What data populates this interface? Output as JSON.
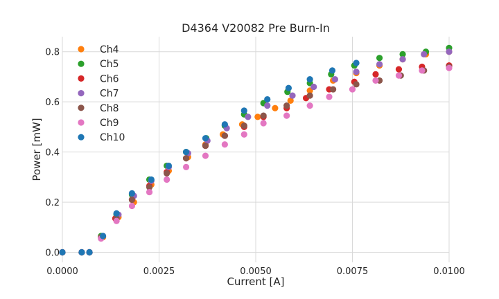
{
  "chart_data": {
    "type": "scatter",
    "title": "D4364 V20082 Pre Burn-In",
    "xlabel": "Current [A]",
    "ylabel": "Power [mW]",
    "xlim": [
      0.0,
      0.01
    ],
    "ylim": [
      -0.04,
      0.86
    ],
    "xticks": [
      0.0,
      0.0025,
      0.005,
      0.0075,
      0.01
    ],
    "xtick_labels": [
      "0.0000",
      "0.0025",
      "0.0050",
      "0.0075",
      "0.0100"
    ],
    "yticks": [
      0.0,
      0.2,
      0.4,
      0.6,
      0.8
    ],
    "ytick_labels": [
      "0.0",
      "0.2",
      "0.4",
      "0.6",
      "0.8"
    ],
    "grid": true,
    "legend_position": "top-left",
    "series": [
      {
        "name": "Ch4",
        "color": "#ff7f0e",
        "x": [
          0,
          0.0005,
          0.0007,
          0.00105,
          0.00145,
          0.00185,
          0.0023,
          0.00275,
          0.00325,
          0.0037,
          0.00415,
          0.00465,
          0.00505,
          0.0055,
          0.0059,
          0.0064,
          0.007,
          0.0076,
          0.0082,
          0.0088,
          0.0094,
          0.01
        ],
        "y": [
          0,
          0,
          0,
          0.06,
          0.14,
          0.2,
          0.27,
          0.325,
          0.38,
          0.43,
          0.47,
          0.51,
          0.54,
          0.575,
          0.605,
          0.645,
          0.685,
          0.715,
          0.745,
          0.77,
          0.79,
          0.8
        ]
      },
      {
        "name": "Ch5",
        "color": "#2ca02c",
        "x": [
          0,
          0.0005,
          0.0007,
          0.001,
          0.0014,
          0.0018,
          0.00225,
          0.0027,
          0.0032,
          0.00372,
          0.0042,
          0.0047,
          0.0052,
          0.00582,
          0.0064,
          0.00695,
          0.00755,
          0.0082,
          0.0088,
          0.0094,
          0.01
        ],
        "y": [
          0,
          0,
          0,
          0.065,
          0.15,
          0.23,
          0.29,
          0.345,
          0.4,
          0.455,
          0.505,
          0.55,
          0.595,
          0.64,
          0.675,
          0.71,
          0.745,
          0.775,
          0.79,
          0.8,
          0.815
        ]
      },
      {
        "name": "Ch6",
        "color": "#d62728",
        "x": [
          0,
          0.0005,
          0.0007,
          0.001,
          0.00137,
          0.0018,
          0.00225,
          0.0027,
          0.0032,
          0.0037,
          0.0042,
          0.0047,
          0.0052,
          0.0058,
          0.0063,
          0.0069,
          0.00755,
          0.0081,
          0.0087,
          0.0093,
          0.01
        ],
        "y": [
          0,
          0,
          0,
          0.06,
          0.135,
          0.21,
          0.265,
          0.32,
          0.375,
          0.425,
          0.465,
          0.5,
          0.54,
          0.575,
          0.615,
          0.65,
          0.68,
          0.71,
          0.73,
          0.74,
          0.745
        ]
      },
      {
        "name": "Ch7",
        "color": "#9467bd",
        "x": [
          0,
          0.0005,
          0.0007,
          0.00105,
          0.00145,
          0.00185,
          0.0023,
          0.00275,
          0.00325,
          0.00375,
          0.00425,
          0.0048,
          0.0053,
          0.00595,
          0.0065,
          0.00705,
          0.0076,
          0.0082,
          0.0088,
          0.00935,
          0.01
        ],
        "y": [
          0,
          0,
          0,
          0.065,
          0.15,
          0.225,
          0.285,
          0.34,
          0.395,
          0.445,
          0.495,
          0.54,
          0.585,
          0.625,
          0.66,
          0.69,
          0.72,
          0.75,
          0.77,
          0.79,
          0.8
        ]
      },
      {
        "name": "Ch8",
        "color": "#8c564b",
        "x": [
          0,
          0.0005,
          0.0007,
          0.001,
          0.0014,
          0.0018,
          0.00225,
          0.0027,
          0.0032,
          0.0037,
          0.0042,
          0.0047,
          0.0052,
          0.0058,
          0.0064,
          0.007,
          0.0076,
          0.0082,
          0.00875,
          0.00935,
          0.01
        ],
        "y": [
          0,
          0,
          0,
          0.06,
          0.135,
          0.21,
          0.26,
          0.315,
          0.375,
          0.425,
          0.465,
          0.505,
          0.545,
          0.585,
          0.625,
          0.65,
          0.67,
          0.685,
          0.705,
          0.725,
          0.74
        ]
      },
      {
        "name": "Ch9",
        "color": "#e377c2",
        "x": [
          0,
          0.0005,
          0.0007,
          0.001,
          0.0014,
          0.0018,
          0.00225,
          0.0027,
          0.0032,
          0.0037,
          0.0042,
          0.0047,
          0.0052,
          0.0058,
          0.0064,
          0.0069,
          0.0075,
          0.0081,
          0.0087,
          0.0093,
          0.01
        ],
        "y": [
          0,
          0,
          0,
          0.055,
          0.125,
          0.185,
          0.24,
          0.29,
          0.34,
          0.385,
          0.43,
          0.47,
          0.515,
          0.545,
          0.585,
          0.62,
          0.65,
          0.685,
          0.705,
          0.725,
          0.735
        ]
      },
      {
        "name": "Ch10",
        "color": "#1f77b4",
        "x": [
          0,
          0.0005,
          0.0007,
          0.00105,
          0.0014,
          0.0018,
          0.0023,
          0.00275,
          0.0032,
          0.0037,
          0.0042,
          0.0047,
          0.0053,
          0.00585,
          0.0064,
          0.00698,
          0.0076
        ],
        "y": [
          0,
          0,
          0,
          0.065,
          0.155,
          0.235,
          0.29,
          0.345,
          0.4,
          0.455,
          0.51,
          0.565,
          0.61,
          0.655,
          0.69,
          0.725,
          0.755
        ]
      }
    ]
  }
}
